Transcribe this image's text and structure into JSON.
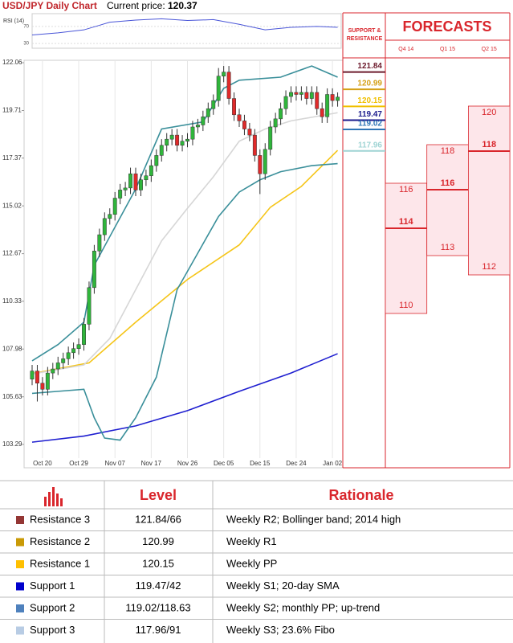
{
  "header": {
    "title": "USD/JPY Daily Chart",
    "price_label": "Current price:",
    "price": 120.37
  },
  "chart_data": [
    {
      "type": "candlestick",
      "categories": [
        null,
        null,
        "Oct 20",
        null,
        null,
        null,
        null,
        null,
        null,
        "Oct 29",
        null,
        null,
        null,
        null,
        null,
        null,
        "Nov 07",
        null,
        null,
        null,
        null,
        null,
        null,
        "Nov 17",
        null,
        null,
        null,
        null,
        null,
        null,
        "Nov 26",
        null,
        null,
        null,
        null,
        null,
        null,
        "Dec 05",
        null,
        null,
        null,
        null,
        null,
        null,
        "Dec 15",
        null,
        null,
        null,
        null,
        null,
        null,
        "Dec 24",
        null,
        null,
        null,
        null,
        null,
        null,
        "Jan 02",
        null
      ],
      "open": [
        106.5,
        106.9,
        106.3,
        106.0,
        106.8,
        107.0,
        107.3,
        107.5,
        107.8,
        108.0,
        108.2,
        109.2,
        111.0,
        112.8,
        113.6,
        114.4,
        114.6,
        115.4,
        115.8,
        115.9,
        116.6,
        115.8,
        116.3,
        116.5,
        117.0,
        117.5,
        118.0,
        118.3,
        118.5,
        118.0,
        118.2,
        118.3,
        118.9,
        119.0,
        119.4,
        119.8,
        120.2,
        121.4,
        121.6,
        120.3,
        119.5,
        119.2,
        118.8,
        118.5,
        117.5,
        116.6,
        117.8,
        118.9,
        119.3,
        119.8,
        120.4,
        120.6,
        120.5,
        120.6,
        120.3,
        120.6,
        119.8,
        119.4,
        120.5,
        120.2
      ],
      "high": [
        107.2,
        107.2,
        106.6,
        107.1,
        107.3,
        107.6,
        107.8,
        108.1,
        108.3,
        108.5,
        109.5,
        111.3,
        113.1,
        113.9,
        114.7,
        114.9,
        115.7,
        116.1,
        116.2,
        116.9,
        116.9,
        116.6,
        116.8,
        117.3,
        117.8,
        118.3,
        118.6,
        118.8,
        118.8,
        118.5,
        118.6,
        119.2,
        119.3,
        119.7,
        120.1,
        120.5,
        121.8,
        121.9,
        121.9,
        120.6,
        119.8,
        119.5,
        119.1,
        118.8,
        117.8,
        118.1,
        119.2,
        119.6,
        120.1,
        120.7,
        120.9,
        120.9,
        120.9,
        120.9,
        120.9,
        120.9,
        120.1,
        120.8,
        120.8,
        120.6
      ],
      "low": [
        106.2,
        105.4,
        105.7,
        105.7,
        106.5,
        106.7,
        107.0,
        107.2,
        107.5,
        107.7,
        107.9,
        108.9,
        110.7,
        112.5,
        113.3,
        114.1,
        114.3,
        115.1,
        115.5,
        115.6,
        115.5,
        115.5,
        116.0,
        116.2,
        116.7,
        117.2,
        117.7,
        118.0,
        117.7,
        117.7,
        117.9,
        118.0,
        118.6,
        118.7,
        119.1,
        119.5,
        119.9,
        121.1,
        120.0,
        119.2,
        118.9,
        118.5,
        118.2,
        117.2,
        115.6,
        116.3,
        117.5,
        118.6,
        119.0,
        119.5,
        120.1,
        120.2,
        120.2,
        120.0,
        120.0,
        119.5,
        119.1,
        119.1,
        119.9,
        119.9
      ],
      "close": [
        106.9,
        106.3,
        106.0,
        106.8,
        107.0,
        107.3,
        107.5,
        107.8,
        108.0,
        108.2,
        109.2,
        111.0,
        112.8,
        113.6,
        114.4,
        114.6,
        115.4,
        115.8,
        115.9,
        116.6,
        115.8,
        116.3,
        116.5,
        117.0,
        117.5,
        118.0,
        118.3,
        118.5,
        118.0,
        118.2,
        118.3,
        118.9,
        119.0,
        119.4,
        119.8,
        120.2,
        121.4,
        121.6,
        120.3,
        119.5,
        119.2,
        118.8,
        118.5,
        117.5,
        116.6,
        117.8,
        118.9,
        119.3,
        119.8,
        120.4,
        120.6,
        120.5,
        120.6,
        120.3,
        120.6,
        119.8,
        119.4,
        120.5,
        120.2,
        120.37
      ],
      "up_color": "#2fb53b",
      "down_color": "#e02a2a",
      "series": [
        {
          "color": "#1f1fd0",
          "x": [
            0,
            10,
            20,
            30,
            40,
            50,
            59
          ],
          "values": [
            103.4,
            103.7,
            104.2,
            104.95,
            105.9,
            106.8,
            107.75
          ]
        },
        {
          "color": "#f5c518",
          "x": [
            0,
            11,
            20,
            30,
            40,
            46,
            52,
            59
          ],
          "values": [
            106.77,
            107.3,
            109.3,
            111.4,
            113.1,
            114.95,
            115.98,
            117.75
          ]
        },
        {
          "color": "#d6d6d6",
          "x": [
            0,
            10,
            15,
            20,
            25,
            30,
            35,
            40,
            45,
            50,
            59
          ],
          "values": [
            106.75,
            107.2,
            108.5,
            110.9,
            113.3,
            114.9,
            116.45,
            118.2,
            118.8,
            119.2,
            119.6
          ]
        },
        {
          "color": "#3a8f9a",
          "x": [
            0,
            5,
            10,
            12,
            20,
            25,
            33,
            37,
            40,
            48,
            54,
            59
          ],
          "values": [
            107.4,
            108.2,
            109.3,
            112.1,
            115.85,
            118.8,
            119.15,
            120.8,
            121.2,
            121.35,
            121.9,
            121.35
          ]
        },
        {
          "color": "#3a8f9a",
          "x": [
            0,
            5,
            10,
            12,
            14,
            17,
            20,
            24,
            28,
            32,
            36,
            40,
            44,
            48,
            54,
            59
          ],
          "values": [
            105.8,
            105.9,
            106.0,
            104.6,
            103.6,
            103.5,
            104.6,
            106.6,
            110.9,
            112.7,
            114.5,
            115.7,
            116.3,
            116.7,
            117.0,
            117.1
          ]
        }
      ],
      "ylim": [
        102.14,
        122.18
      ],
      "yticks": [
        103.29,
        105.63,
        107.98,
        110.33,
        112.67,
        115.02,
        117.37,
        119.71,
        122.06
      ],
      "grid": true
    },
    {
      "type": "line",
      "title": "RSI (14)",
      "x": [
        0,
        5,
        10,
        15,
        20,
        25,
        30,
        35,
        40,
        45,
        50,
        55,
        59
      ],
      "values": [
        50,
        55,
        62,
        80,
        85,
        88,
        84,
        86,
        75,
        62,
        68,
        70,
        68
      ],
      "color": "#4a56d8",
      "ylim": [
        19,
        100
      ],
      "yticks": [
        30,
        70
      ]
    }
  ],
  "levels": {
    "title": "SUPPORT & RESISTANCE",
    "items": [
      {
        "value": 121.84,
        "color": "#6d1b2d"
      },
      {
        "value": 120.99,
        "color": "#d4a017"
      },
      {
        "value": 120.15,
        "color": "#f0c000"
      },
      {
        "value": 119.47,
        "color": "#1a1a8c"
      },
      {
        "value": 119.02,
        "color": "#2e75b6"
      },
      {
        "value": 117.96,
        "color": "#9fd4d4"
      }
    ]
  },
  "forecasts": {
    "title": "FORECASTS",
    "periods": [
      {
        "name": "Q4 14",
        "high": 116,
        "mid": 114,
        "low": 110
      },
      {
        "name": "Q1 15",
        "high": 118,
        "mid": 116,
        "low": 113
      },
      {
        "name": "Q2 15",
        "high": 120,
        "mid": 118,
        "low": 112
      }
    ]
  },
  "table": {
    "columns": [
      "Level",
      "Rationale"
    ],
    "rows": [
      {
        "name": "Resistance 3",
        "color": "#943634",
        "level": "121.84/66",
        "rationale": "Weekly R2; Bollinger band; 2014 high"
      },
      {
        "name": "Resistance 2",
        "color": "#c99a06",
        "level": "120.99",
        "rationale": "Weekly R1"
      },
      {
        "name": "Resistance 1",
        "color": "#ffc000",
        "level": "120.15",
        "rationale": "Weekly PP"
      },
      {
        "name": "Support 1",
        "color": "#0000cc",
        "level": "119.47/42",
        "rationale": "Weekly S1; 20-day SMA"
      },
      {
        "name": "Support 2",
        "color": "#4f81bd",
        "level": "119.02/118.63",
        "rationale": "Weekly S2; monthly PP; up-trend"
      },
      {
        "name": "Support 3",
        "color": "#b8cce4",
        "level": "117.96/91",
        "rationale": "Weekly S3; 23.6% Fibo"
      }
    ]
  }
}
